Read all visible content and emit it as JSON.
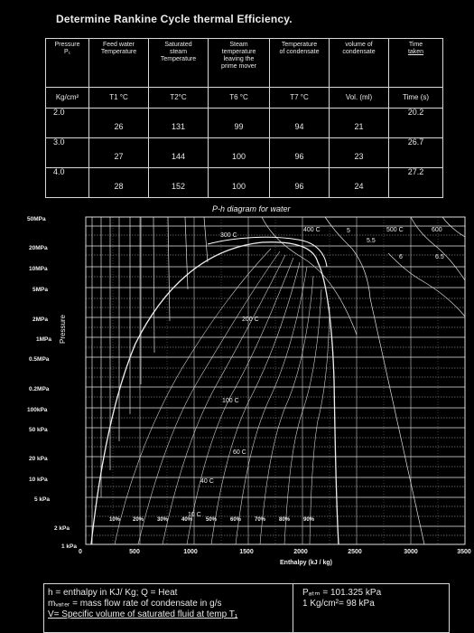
{
  "title": "Determine Rankine Cycle thermal Efficiency.",
  "table": {
    "headers": [
      [
        "Pressure",
        "P₁"
      ],
      [
        "Feed water",
        "Temperature"
      ],
      [
        "Saturated",
        "steam",
        "Temperature"
      ],
      [
        "Steam",
        "temperature",
        "leaving the",
        "prime mover"
      ],
      [
        "Temperature",
        "of condensate"
      ],
      [
        "volume of",
        "condensate"
      ],
      [
        "Time",
        "taken"
      ]
    ],
    "units": [
      "Kg/cm²",
      "T1 °C",
      "T2°C",
      "T6 °C",
      "T7 °C",
      "Vol. (ml)",
      "Time (s)"
    ],
    "rows": [
      [
        "2.0",
        "26",
        "131",
        "99",
        "94",
        "21",
        "20.2"
      ],
      [
        "3.0",
        "27",
        "144",
        "100",
        "96",
        "23",
        "26.7"
      ],
      [
        "4.0",
        "28",
        "152",
        "100",
        "96",
        "24",
        "27.2"
      ]
    ]
  },
  "diagram": {
    "title": "P-h diagram for water",
    "ylabel": "Pressure",
    "xlabel": "Enthalpy (kJ / kg)",
    "pressure_labels": [
      "50MPa",
      "20MPa",
      "10MPa",
      "5MPa",
      "2MPa",
      "1MPa",
      "0.5MPa",
      "0.2MPa",
      "100kPa",
      "50 kPa",
      "20 kPa",
      "10 kPa",
      "5 kPa",
      "2 kPa",
      "1 kPa"
    ],
    "enthalpy_ticks": [
      "0",
      "500",
      "1000",
      "1500",
      "2000",
      "2500",
      "3000",
      "3500"
    ],
    "temperature_labels": [
      "300 C",
      "400 C",
      "500 C",
      "600",
      "200 C",
      "100 C",
      "60 C",
      "40 C",
      "10 C"
    ],
    "entropy_labels": [
      "5",
      "5.5",
      "6",
      "6.5"
    ],
    "quality_labels": [
      "10%",
      "20%",
      "30%",
      "40%",
      "50%",
      "60%",
      "70%",
      "80%",
      "90%"
    ]
  },
  "footer": {
    "line1": "h = enthalpy in KJ/ Kg; Q = Heat",
    "line2": "mᵥₐₜₑᵣ = mass flow rate of condensate in g/s",
    "line3": "V= Specific volume of saturated fluid at temp T₁",
    "line4": "Pₐₜₘ = 101.325 kPa",
    "line5": "1 Kg/cm²= 98 kPa"
  }
}
